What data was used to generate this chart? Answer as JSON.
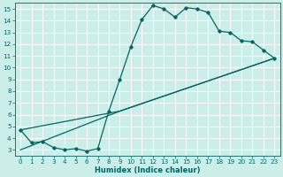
{
  "xlabel": "Humidex (Indice chaleur)",
  "ylabel": "",
  "bg_color": "#cceee8",
  "line_color": "#006666",
  "grid_color": "#ffffff",
  "xlim": [
    -0.5,
    23.5
  ],
  "ylim": [
    2.5,
    15.5
  ],
  "xticks": [
    0,
    1,
    2,
    3,
    4,
    5,
    6,
    7,
    8,
    9,
    10,
    11,
    12,
    13,
    14,
    15,
    16,
    17,
    18,
    19,
    20,
    21,
    22,
    23
  ],
  "yticks": [
    3,
    4,
    5,
    6,
    7,
    8,
    9,
    10,
    11,
    12,
    13,
    14,
    15
  ],
  "curve1_x": [
    0,
    1,
    2,
    3,
    4,
    5,
    6,
    7,
    8,
    9,
    10,
    11,
    12,
    13,
    14,
    15,
    16,
    17,
    18,
    19,
    20,
    21,
    22,
    23
  ],
  "curve1_y": [
    4.7,
    3.6,
    3.7,
    3.2,
    3.0,
    3.1,
    2.9,
    3.1,
    6.3,
    9.0,
    11.8,
    14.1,
    15.3,
    15.0,
    14.3,
    15.1,
    15.0,
    14.7,
    13.1,
    13.0,
    12.3,
    12.2,
    11.5,
    10.8
  ],
  "curve2_x": [
    0,
    9,
    23
  ],
  "curve2_y": [
    4.7,
    6.3,
    10.8
  ],
  "curve3_x": [
    0,
    9,
    23
  ],
  "curve3_y": [
    3.0,
    6.3,
    10.8
  ],
  "figwidth": 3.2,
  "figheight": 2.0,
  "dpi": 100
}
